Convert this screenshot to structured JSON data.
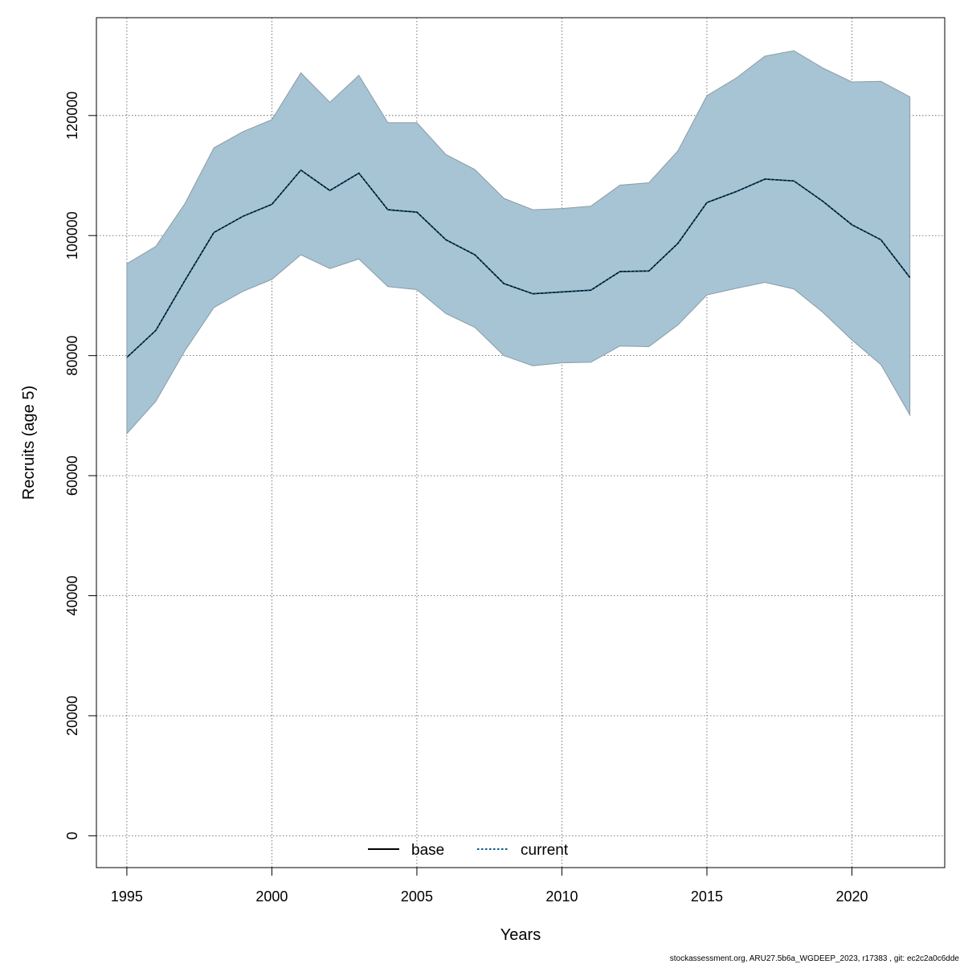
{
  "chart_data": {
    "type": "area",
    "title": "",
    "xlabel": "Years",
    "ylabel": "Recruits (age 5)",
    "xlim": [
      1993.95,
      2023.2
    ],
    "ylim": [
      -5300,
      136300
    ],
    "grid": true,
    "xticks": [
      {
        "value": 1995,
        "label": "1995"
      },
      {
        "value": 2000,
        "label": "2000"
      },
      {
        "value": 2005,
        "label": "2005"
      },
      {
        "value": 2010,
        "label": "2010"
      },
      {
        "value": 2015,
        "label": "2015"
      },
      {
        "value": 2020,
        "label": "2020"
      }
    ],
    "yticks": [
      {
        "value": 0,
        "label": "0"
      },
      {
        "value": 20000,
        "label": "20000"
      },
      {
        "value": 40000,
        "label": "40000"
      },
      {
        "value": 60000,
        "label": "60000"
      },
      {
        "value": 80000,
        "label": "80000"
      },
      {
        "value": 100000,
        "label": "100000"
      },
      {
        "value": 120000,
        "label": "120000"
      }
    ],
    "x": [
      1995,
      1996,
      1997,
      1998,
      1999,
      2000,
      2001,
      2002,
      2003,
      2004,
      2005,
      2006,
      2007,
      2008,
      2009,
      2010,
      2011,
      2012,
      2013,
      2014,
      2015,
      2016,
      2017,
      2018,
      2019,
      2020,
      2021,
      2022
    ],
    "band": {
      "color": "#a6c4d4",
      "edge_color": "#8a9ba6",
      "upper": [
        95300,
        98200,
        105300,
        114600,
        117300,
        119300,
        127100,
        122200,
        126700,
        118800,
        118800,
        113500,
        111000,
        106200,
        104300,
        104500,
        104900,
        108400,
        108800,
        114100,
        123300,
        126200,
        129900,
        130800,
        127900,
        125600,
        125700,
        123100
      ],
      "lower": [
        67000,
        72400,
        80800,
        88000,
        90700,
        92700,
        96800,
        94500,
        96100,
        91500,
        91000,
        87000,
        84700,
        80000,
        78300,
        78800,
        78900,
        81600,
        81500,
        85100,
        90100,
        91200,
        92200,
        91100,
        87200,
        82600,
        78500,
        70100
      ]
    },
    "series": [
      {
        "name": "base",
        "color": "#000000",
        "style": "solid",
        "values": [
          79700,
          84200,
          92500,
          100500,
          103200,
          105200,
          110900,
          107500,
          110400,
          104300,
          103900,
          99300,
          96800,
          92000,
          90300,
          90600,
          90900,
          94000,
          94100,
          98700,
          105500,
          107300,
          109400,
          109100,
          105700,
          101800,
          99300,
          93000
        ]
      },
      {
        "name": "current",
        "color": "#0b5c8a",
        "style": "dotted",
        "values": [
          79700,
          84200,
          92500,
          100500,
          103200,
          105200,
          110900,
          107500,
          110400,
          104300,
          103900,
          99300,
          96800,
          92000,
          90300,
          90600,
          90900,
          94000,
          94100,
          98700,
          105500,
          107300,
          109400,
          109100,
          105700,
          101800,
          99300,
          93000
        ]
      }
    ],
    "legend": {
      "placement": "bottom-center",
      "items": [
        {
          "label": "base",
          "color": "#000000",
          "style": "solid"
        },
        {
          "label": "current",
          "color": "#0b5c8a",
          "style": "dotted"
        }
      ]
    }
  },
  "footer_note": "stockassessment.org, ARU27.5b6a_WGDEEP_2023, r17383 , git: ec2c2a0c6dde"
}
